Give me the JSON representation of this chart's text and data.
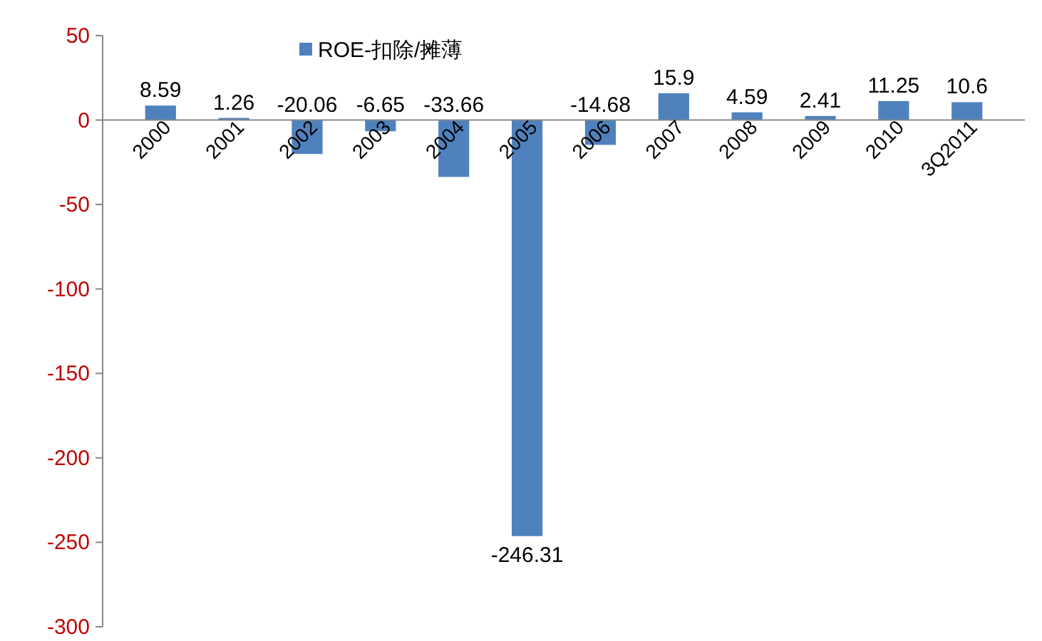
{
  "chart_data": {
    "type": "bar",
    "categories": [
      "2000",
      "2001",
      "2002",
      "2003",
      "2004",
      "2005",
      "2006",
      "2007",
      "2008",
      "2009",
      "2010",
      "3Q2011"
    ],
    "series": [
      {
        "name": "ROE-扣除/摊薄",
        "color": "#4f81bd",
        "values": [
          8.59,
          1.26,
          -20.06,
          -6.65,
          -33.66,
          -246.31,
          -14.68,
          15.9,
          4.59,
          2.41,
          11.25,
          10.6
        ]
      }
    ],
    "ylim": [
      -300,
      50
    ],
    "yticks": [
      -300,
      -250,
      -200,
      -150,
      -100,
      -50,
      0,
      50
    ],
    "data_labels": true,
    "legend": "top",
    "grid": false
  }
}
